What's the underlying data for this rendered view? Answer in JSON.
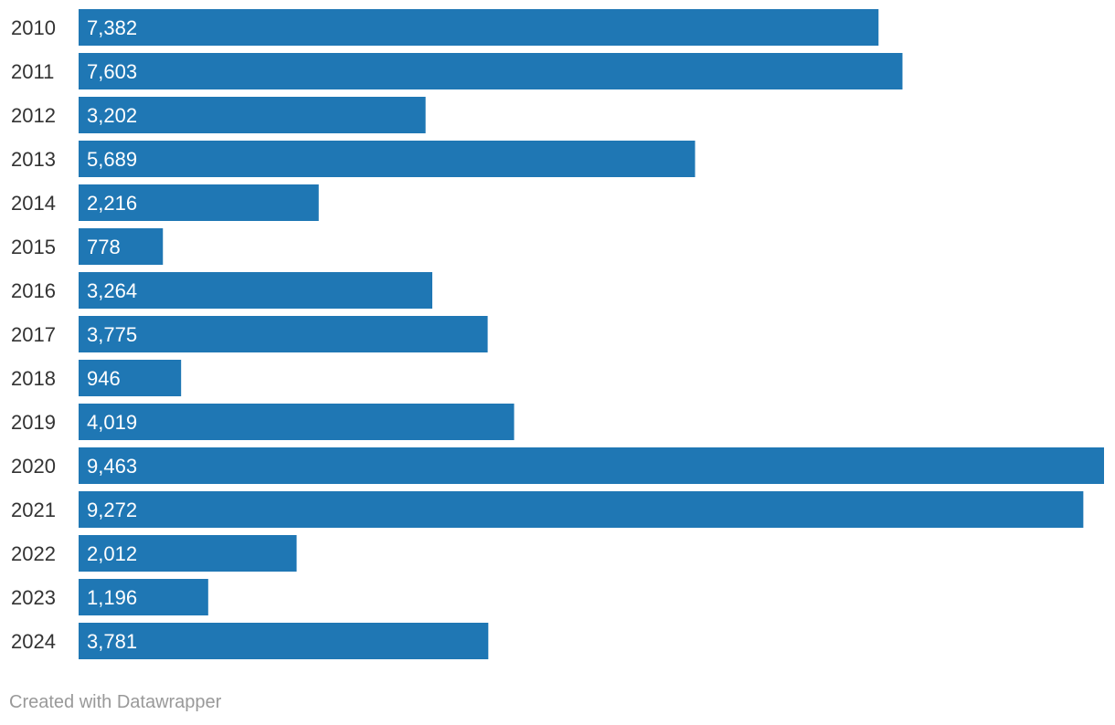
{
  "chart_data": {
    "type": "bar",
    "orientation": "horizontal",
    "categories": [
      "2010",
      "2011",
      "2012",
      "2013",
      "2014",
      "2015",
      "2016",
      "2017",
      "2018",
      "2019",
      "2020",
      "2021",
      "2022",
      "2023",
      "2024"
    ],
    "values": [
      7382,
      7603,
      3202,
      5689,
      2216,
      778,
      3264,
      3775,
      946,
      4019,
      9463,
      9272,
      2012,
      1196,
      3781
    ],
    "value_labels": [
      "7,382",
      "7,603",
      "3,202",
      "5,689",
      "2,216",
      "778",
      "3,264",
      "3,775",
      "946",
      "4,019",
      "9,463",
      "9,272",
      "2,012",
      "1,196",
      "3,781"
    ],
    "bar_color": "#1f77b4",
    "grid": false
  },
  "footer": {
    "credit": "Created with Datawrapper"
  }
}
